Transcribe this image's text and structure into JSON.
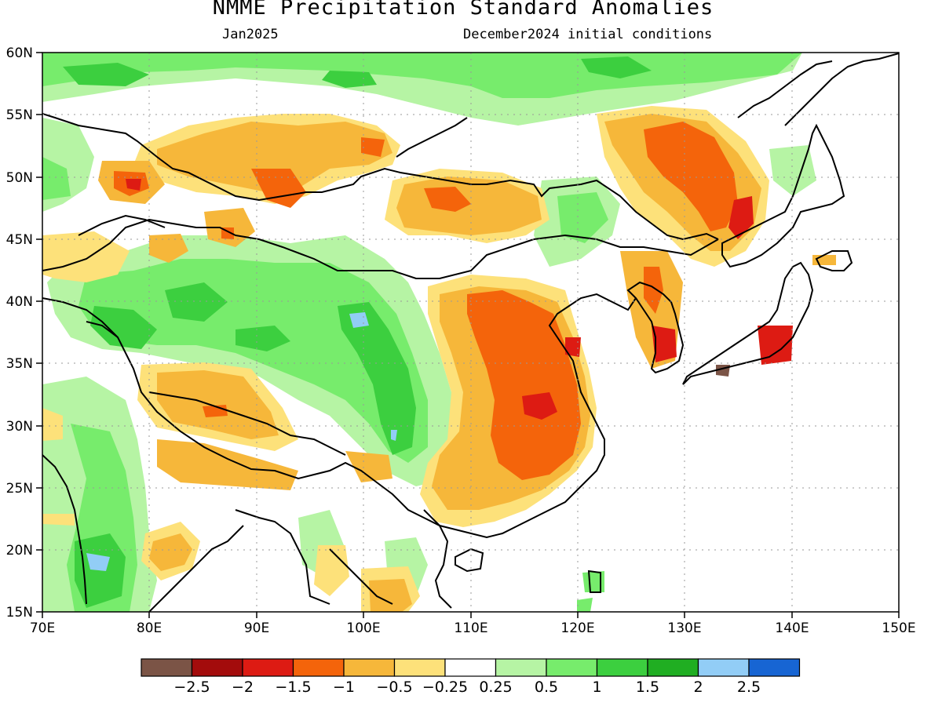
{
  "title": "NMME Precipitation Standard Anomalies",
  "subtitle_left": "Jan2025",
  "subtitle_right": "December2024 initial conditions",
  "map": {
    "lon_range": [
      70,
      150
    ],
    "lat_range": [
      15,
      60
    ],
    "lon_ticks": [
      "70E",
      "80E",
      "90E",
      "100E",
      "110E",
      "120E",
      "130E",
      "140E",
      "150E"
    ],
    "lat_ticks": [
      "60N",
      "55N",
      "50N",
      "45N",
      "40N",
      "35N",
      "30N",
      "25N",
      "20N",
      "15N"
    ]
  },
  "colorbar": {
    "colors": [
      "#7b5446",
      "#a30c0c",
      "#dd1b13",
      "#f4640b",
      "#f6b73a",
      "#fde17a",
      "#ffffff",
      "#b6f4a4",
      "#77ec6c",
      "#3ccf3f",
      "#20ae22",
      "#92cdf6",
      "#1765d3"
    ],
    "labels": [
      "−2.5",
      "−2",
      "−1.5",
      "−1",
      "−0.5",
      "−0.25",
      "0.25",
      "0.5",
      "1",
      "1.5",
      "2",
      "2.5"
    ]
  }
}
